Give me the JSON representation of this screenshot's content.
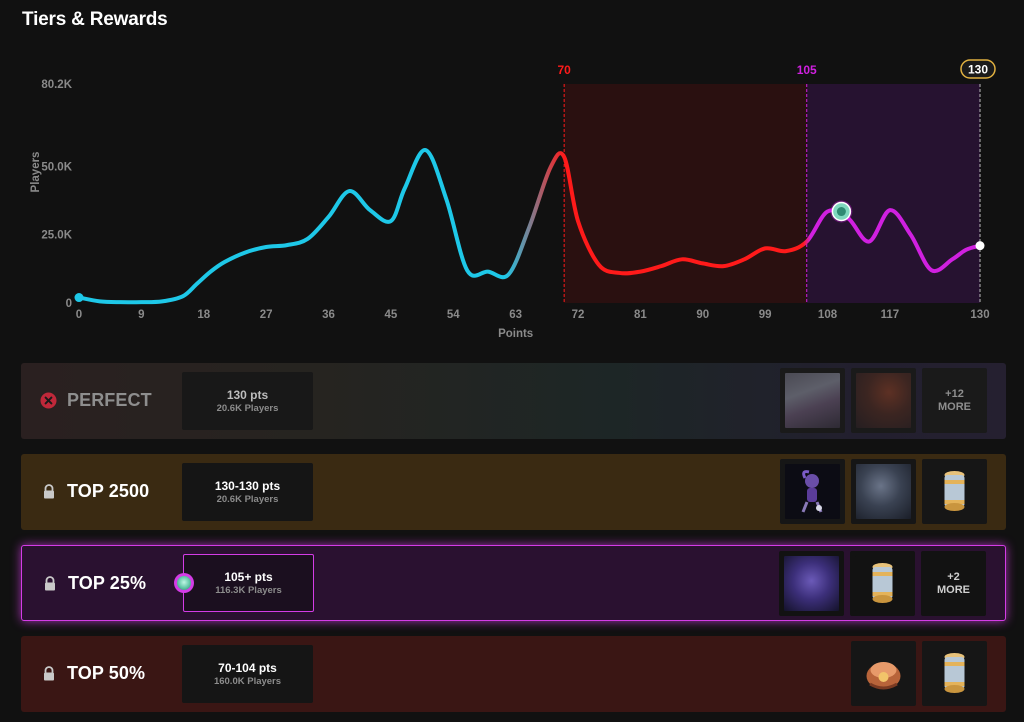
{
  "header": {
    "title": "Tiers & Rewards"
  },
  "chart_data": {
    "type": "line",
    "xlabel": "Points",
    "ylabel": "Players",
    "xlim": [
      0,
      130
    ],
    "ylim": [
      0,
      80200
    ],
    "x_ticks": [
      "0",
      "9",
      "18",
      "27",
      "36",
      "45",
      "54",
      "63",
      "72",
      "81",
      "90",
      "99",
      "108",
      "117",
      "130"
    ],
    "y_ticks": [
      "0",
      "25.0K",
      "50.0K",
      "80.2K"
    ],
    "x": [
      0,
      3,
      6,
      9,
      12,
      15,
      17,
      19,
      21,
      24,
      27,
      30,
      33,
      36,
      39,
      42,
      45,
      47,
      50,
      53,
      56,
      59,
      62,
      65,
      68,
      70,
      72,
      75,
      78,
      81,
      84,
      87,
      90,
      93,
      96,
      99,
      102,
      105,
      108,
      111,
      114,
      117,
      120,
      123,
      126,
      128,
      130
    ],
    "y": [
      2000,
      600,
      300,
      300,
      600,
      2500,
      7000,
      11500,
      15000,
      18500,
      20500,
      21200,
      23500,
      31500,
      41000,
      34000,
      30000,
      42000,
      56000,
      38000,
      12000,
      11500,
      10500,
      28000,
      49500,
      53500,
      30000,
      14000,
      11000,
      11500,
      13500,
      16000,
      14500,
      13500,
      16000,
      20000,
      19000,
      22500,
      33500,
      31000,
      22500,
      34000,
      25000,
      12000,
      16000,
      19500,
      21000
    ],
    "thresholds": [
      {
        "label": "70",
        "x": 70,
        "color": "#ff1a1a"
      },
      {
        "label": "105",
        "x": 105,
        "color": "#d020e0"
      },
      {
        "label": "130",
        "x": 130,
        "color": "#ffffff"
      }
    ],
    "user_marker": {
      "x": 110,
      "y": 33500
    },
    "colors": {
      "low": "#1ec8e8",
      "mid": "#ff1a1a",
      "high": "#d020e0"
    }
  },
  "tiers": [
    {
      "name": "PERFECT",
      "status_icon": "x-circle-icon",
      "points": "130 pts",
      "players": "20.6K Players",
      "rewards": [
        "skin-portrait-icon",
        "skin-portrait-icon"
      ],
      "more": [
        "+12",
        "MORE"
      ]
    },
    {
      "name": "TOP 2500",
      "status_icon": "lock-icon",
      "points": "130-130 pts",
      "players": "20.6K Players",
      "rewards": [
        "chibi-figure-icon",
        "skin-portrait-icon",
        "capsule-icon"
      ]
    },
    {
      "name": "TOP 25%",
      "status_icon": "lock-icon",
      "points": "105+ pts",
      "players": "116.3K Players",
      "rewards": [
        "champion-portrait-icon",
        "capsule-icon"
      ],
      "more": [
        "+2",
        "MORE"
      ]
    },
    {
      "name": "TOP 50%",
      "status_icon": "lock-icon",
      "points": "70-104 pts",
      "players": "160.0K Players",
      "rewards": [
        "chest-icon",
        "capsule-icon"
      ]
    }
  ]
}
